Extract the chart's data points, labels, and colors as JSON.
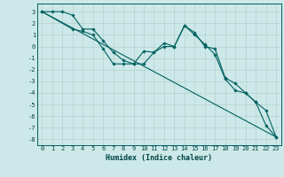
{
  "xlabel": "Humidex (Indice chaleur)",
  "bg_color": "#cde8e8",
  "grid_color": "#b0ccc8",
  "line_color": "#006060",
  "xlim": [
    -0.5,
    23.5
  ],
  "ylim": [
    -8.5,
    3.7
  ],
  "xticks": [
    0,
    1,
    2,
    3,
    4,
    5,
    6,
    7,
    8,
    9,
    10,
    11,
    12,
    13,
    14,
    15,
    16,
    17,
    18,
    19,
    20,
    21,
    22,
    23
  ],
  "yticks": [
    3,
    2,
    1,
    0,
    -1,
    -2,
    -3,
    -4,
    -5,
    -6,
    -7,
    -8
  ],
  "line1_x": [
    0,
    1,
    2,
    3,
    4,
    5,
    6,
    7,
    8,
    9,
    10,
    11,
    12,
    13,
    14,
    15,
    16,
    17,
    18,
    19,
    20,
    21,
    22,
    23
  ],
  "line1_y": [
    3.0,
    3.0,
    3.0,
    2.7,
    1.5,
    1.5,
    0.5,
    -0.5,
    -1.2,
    -1.5,
    -1.5,
    -0.5,
    0.3,
    0.0,
    1.8,
    1.0,
    0.2,
    -0.7,
    -2.8,
    -3.8,
    -4.0,
    -4.8,
    -6.8,
    -7.8
  ],
  "line2_x": [
    0,
    3,
    4,
    5,
    6,
    7,
    8,
    9,
    10,
    11,
    12,
    13,
    14,
    15,
    16,
    17,
    18,
    19,
    20,
    21,
    22,
    23
  ],
  "line2_y": [
    3.0,
    1.5,
    1.3,
    1.0,
    -0.2,
    -1.5,
    -1.5,
    -1.5,
    -0.4,
    -0.5,
    0.0,
    0.0,
    1.8,
    1.2,
    0.0,
    -0.2,
    -2.7,
    -3.2,
    -4.0,
    -4.8,
    -5.5,
    -7.8
  ],
  "line3_x": [
    0,
    23
  ],
  "line3_y": [
    3.0,
    -7.8
  ],
  "tick_fontsize": 5,
  "xlabel_fontsize": 6,
  "marker_size": 1.8,
  "line_width": 0.8
}
